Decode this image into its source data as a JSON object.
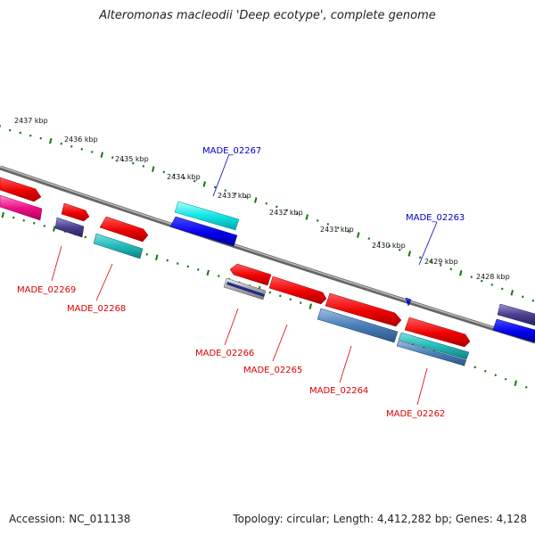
{
  "title": "Alteromonas macleodii 'Deep ecotype', complete genome",
  "footer": {
    "accession": "Accession: NC_011138",
    "summary": "Topology: circular; Length: 4,412,282 bp; Genes: 4,128"
  },
  "ticks": [
    "2437 kbp",
    "2436 kbp",
    "2435 kbp",
    "2434 kbp",
    "2433 kbp",
    "2432 kbp",
    "2431 kbp",
    "2430 kbp",
    "2429 kbp",
    "2428 kbp"
  ],
  "genes": [
    {
      "name": "MADE_02269",
      "color": "#dd0000"
    },
    {
      "name": "MADE_02268",
      "color": "#dd0000"
    },
    {
      "name": "MADE_02267",
      "color": "#0000cc"
    },
    {
      "name": "MADE_02266",
      "color": "#dd0000"
    },
    {
      "name": "MADE_02265",
      "color": "#dd0000"
    },
    {
      "name": "MADE_02264",
      "color": "#dd0000"
    },
    {
      "name": "MADE_02263",
      "color": "#0000cc"
    },
    {
      "name": "MADE_02262",
      "color": "#dd0000"
    }
  ],
  "colors": {
    "forward_cds": "#ff0000",
    "reverse_cds": "#0000ee",
    "tick_marks": "#117711",
    "backbone": "#777777"
  }
}
